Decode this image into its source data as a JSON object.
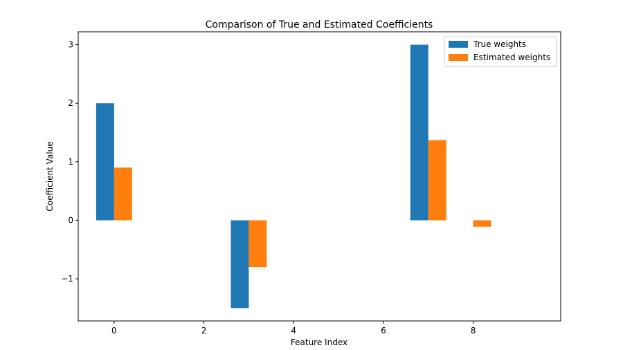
{
  "chart_data": {
    "type": "bar",
    "title": "Comparison of True and Estimated Coefficients",
    "xlabel": "Feature Index",
    "ylabel": "Coefficient Value",
    "xlim": [
      -0.8,
      9.95
    ],
    "ylim": [
      -1.72,
      3.22
    ],
    "xticks": [
      0,
      2,
      4,
      6,
      8
    ],
    "yticks": [
      -1,
      0,
      1,
      2,
      3
    ],
    "bar_width": 0.4,
    "legend_position": "top-right",
    "grid": false,
    "series": [
      {
        "name": "True weights",
        "color": "#1f77b4",
        "x": [
          0,
          1,
          2,
          3,
          4,
          5,
          6,
          7,
          8,
          9
        ],
        "values": [
          2,
          0,
          0,
          -1.5,
          0,
          0,
          0,
          3,
          0,
          0
        ]
      },
      {
        "name": "Estimated weights",
        "color": "#ff7f0e",
        "x": [
          0,
          1,
          2,
          3,
          4,
          5,
          6,
          7,
          8,
          9
        ],
        "values": [
          0.9,
          0,
          0,
          -0.8,
          0,
          0,
          0,
          1.37,
          -0.11,
          0
        ]
      }
    ]
  }
}
